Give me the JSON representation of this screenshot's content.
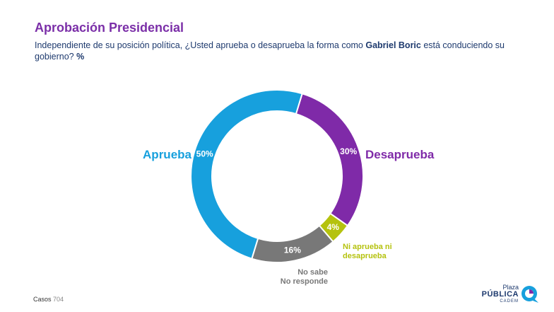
{
  "header": {
    "title": "Aprobación Presidencial",
    "subtitle_pre": "Independiente de su posición política, ¿Usted aprueba o desaprueba la forma como ",
    "subtitle_bold": "Gabriel Boric",
    "subtitle_post": " está conduciendo su gobierno? ",
    "subtitle_unit": "%"
  },
  "chart_data": {
    "type": "pie",
    "style": "donut",
    "title": "Aprobación Presidencial",
    "slices": [
      {
        "label": "Desaprueba",
        "label_lines": [
          "Desaprueba"
        ],
        "value": 30,
        "value_label": "30%",
        "color": "#7f2aa8",
        "label_color": "#7f2aa8"
      },
      {
        "label": "Ni aprueba ni desaprueba",
        "label_lines": [
          "Ni aprueba ni",
          "desaprueba"
        ],
        "value": 4,
        "value_label": "4%",
        "color": "#b5c20e",
        "label_color": "#b5c20e"
      },
      {
        "label": "No sabe No responde",
        "label_lines": [
          "No sabe",
          "No responde"
        ],
        "value": 16,
        "value_label": "16%",
        "color": "#787878",
        "label_color": "#787878"
      },
      {
        "label": "Aprueba",
        "label_lines": [
          "Aprueba"
        ],
        "value": 50,
        "value_label": "50%",
        "color": "#17a0dd",
        "label_color": "#17a0dd"
      }
    ]
  },
  "footer": {
    "casos_label": "Casos",
    "casos_value": "704",
    "logo_line1": "Plaza",
    "logo_line2": "PÚBLICA",
    "logo_line3": "CADEM"
  }
}
